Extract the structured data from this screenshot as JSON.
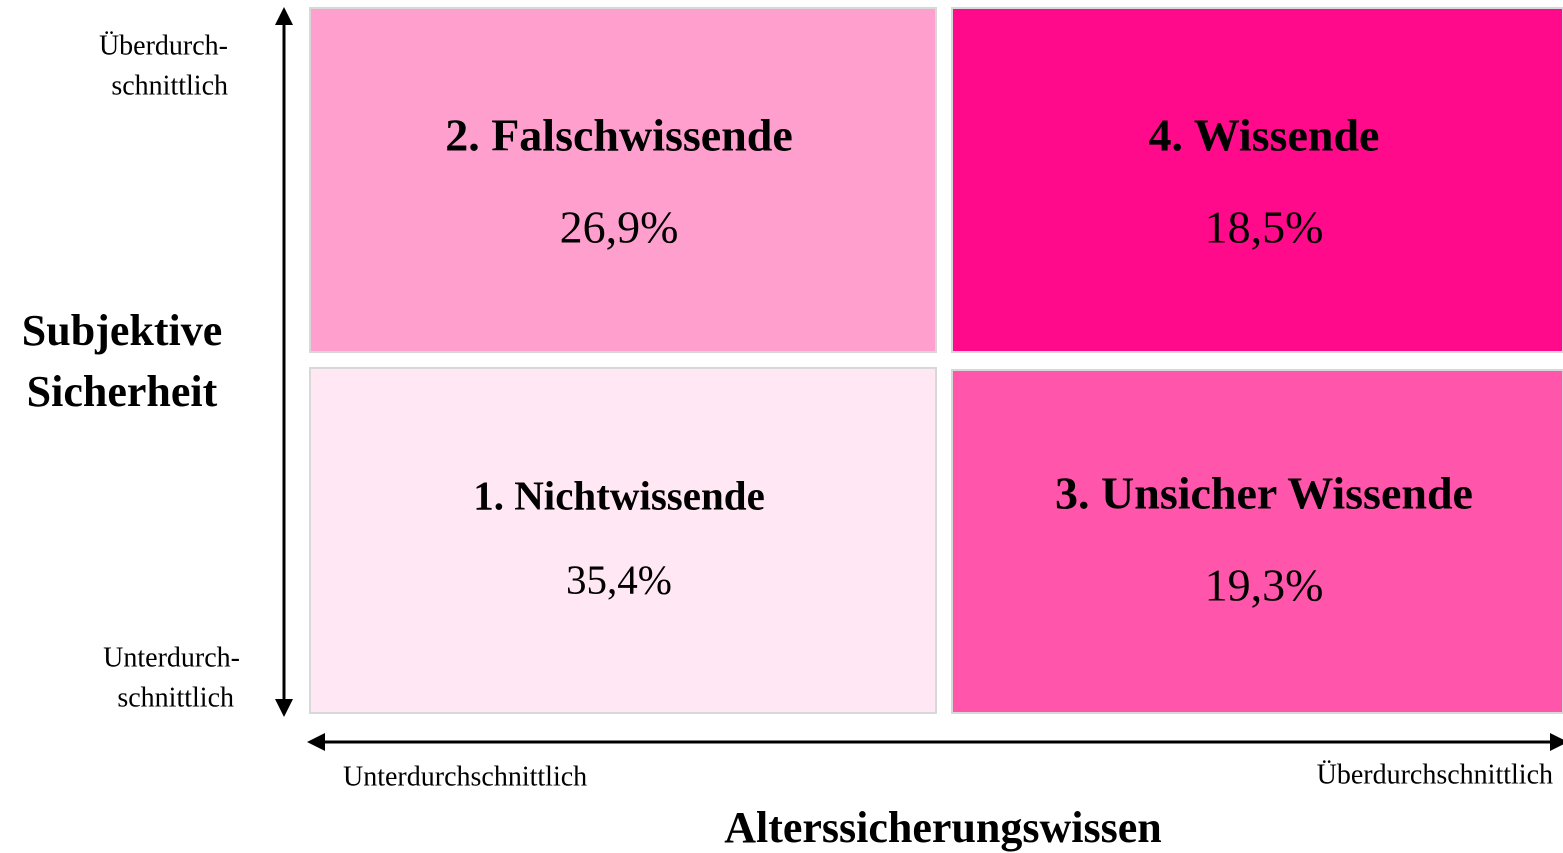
{
  "y_axis": {
    "title": [
      "Subjektive",
      "Sicherheit"
    ],
    "high": [
      "Überdurch-",
      "schnittlich"
    ],
    "low": [
      "Unterdurch-",
      "schnittlich"
    ]
  },
  "x_axis": {
    "title": "Alterssicherungswissen",
    "low": "Unterdurchschnittlich",
    "high": "Überdurchschnittlich"
  },
  "nodes": [
    {
      "label": "2. Falschwissende",
      "share": "26,9%"
    },
    {
      "label": "4. Wissende",
      "share": "18,5%"
    },
    {
      "label": "1. Nichtwissende",
      "share": "35,4%"
    },
    {
      "label": "3. Unsicher Wissende",
      "share": "19,3%"
    }
  ]
}
